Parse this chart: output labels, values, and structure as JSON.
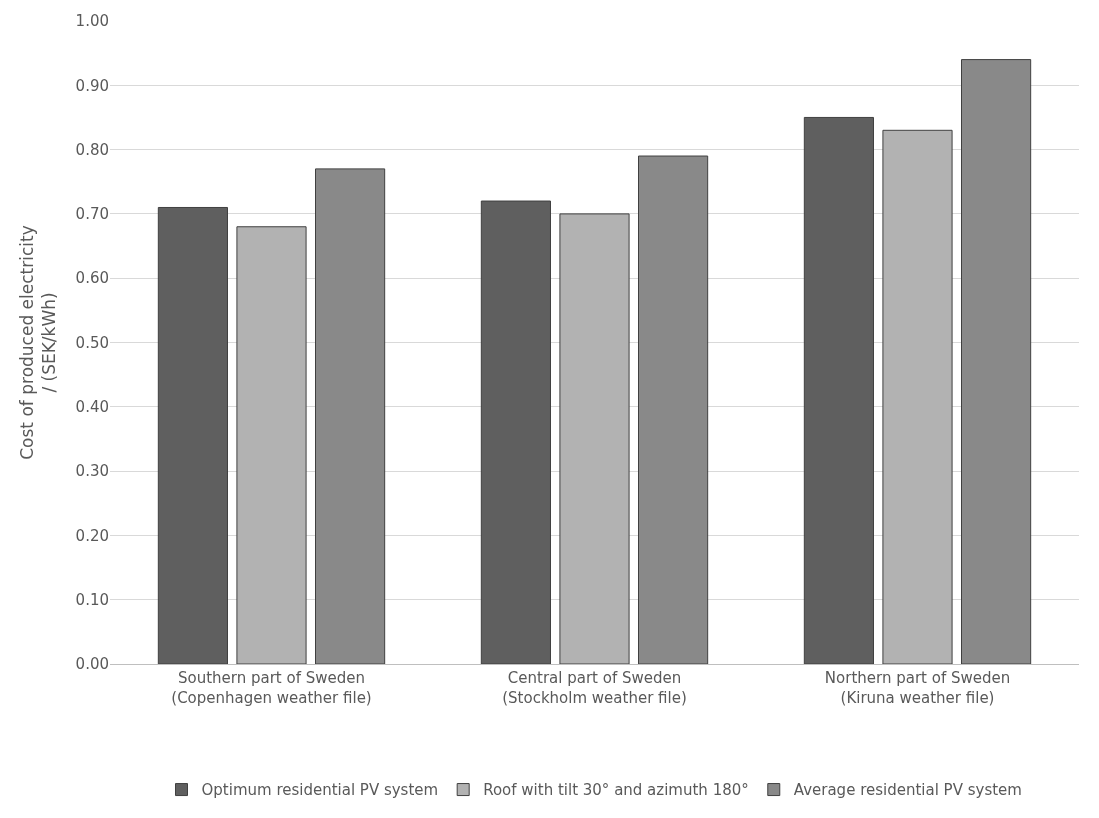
{
  "chart_data": {
    "type": "bar",
    "ylabel": "Cost of produced electricity\n/ (SEK/kWh)",
    "categories": [
      "Southern part of Sweden\n(Copenhagen weather file)",
      "Central part of Sweden\n(Stockholm weather file)",
      "Northern part of Sweden\n(Kiruna weather file)"
    ],
    "series": [
      {
        "name": "Optimum residential PV system",
        "color": "#5f5f5f",
        "values": [
          0.71,
          0.72,
          0.85
        ]
      },
      {
        "name": "Roof with tilt 30° and azimuth 180°",
        "color": "#b2b2b2",
        "values": [
          0.68,
          0.7,
          0.83
        ]
      },
      {
        "name": "Average residential PV system",
        "color": "#898989",
        "values": [
          0.77,
          0.79,
          0.94
        ]
      }
    ],
    "ylim": [
      0,
      1
    ],
    "yticks": [
      {
        "value": 0,
        "label": "0.00"
      },
      {
        "value": 0.1,
        "label": "0.10"
      },
      {
        "value": 0.2,
        "label": "0.20"
      },
      {
        "value": 0.3,
        "label": "0.30"
      },
      {
        "value": 0.4,
        "label": "0.40"
      },
      {
        "value": 0.5,
        "label": "0.50"
      },
      {
        "value": 0.6,
        "label": "0.60"
      },
      {
        "value": 0.7,
        "label": "0.70"
      },
      {
        "value": 0.8,
        "label": "0.80"
      },
      {
        "value": 0.9,
        "label": "0.90"
      },
      {
        "value": 1,
        "label": "1.00"
      }
    ],
    "grid": "y",
    "legend": "bottom"
  }
}
